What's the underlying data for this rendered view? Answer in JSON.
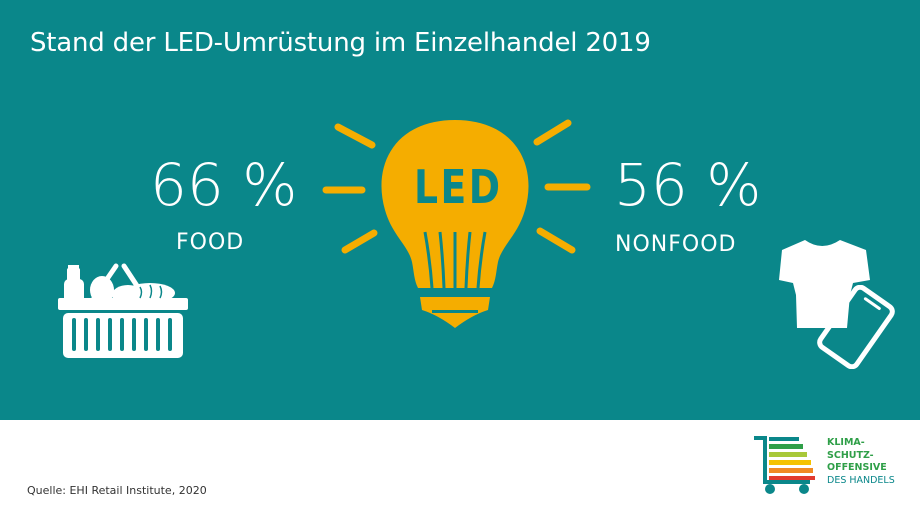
{
  "title": "Stand der LED-Umrüstung im Einzelhandel 2019",
  "food": {
    "percent": "66 %",
    "label": "FOOD",
    "icon": "shopping-basket-icon"
  },
  "nonfood": {
    "percent": "56 %",
    "label": "NONFOOD",
    "icons": [
      "tshirt-icon",
      "smartphone-icon"
    ]
  },
  "bulb": {
    "text": "LED",
    "icon": "lightbulb-icon",
    "color": "#f5ad00"
  },
  "source": "Quelle: EHI Retail Institute, 2020",
  "logo": {
    "lines": [
      "KLIMA-",
      "SCHUTZ-",
      "OFFENSIVE",
      "DES HANDELS"
    ],
    "icon": "shopping-cart-bars-icon"
  },
  "colors": {
    "background": "#0a878a",
    "accent": "#f5ad00",
    "logo_green": "#2f9f48"
  }
}
